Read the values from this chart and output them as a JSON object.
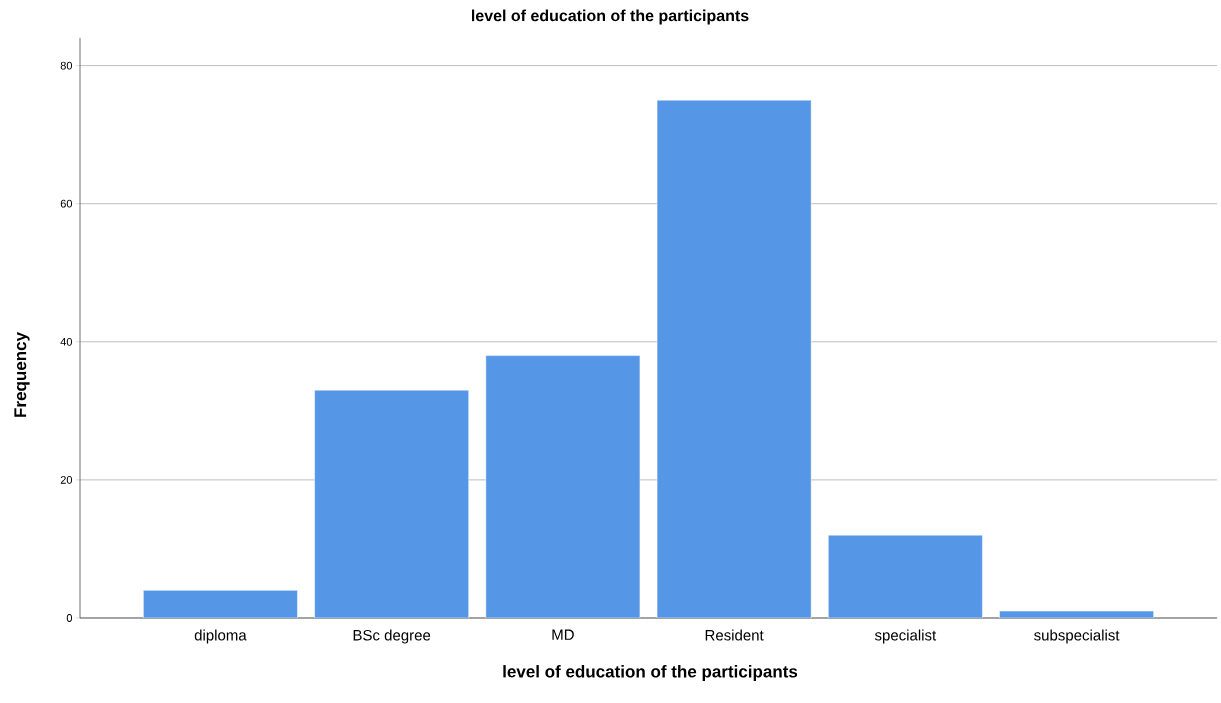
{
  "chart_data": {
    "type": "bar",
    "title": "level of education of the participants",
    "xlabel": "level of education of the participants",
    "ylabel": "Frequency",
    "categories": [
      "diploma",
      "BSc degree",
      "MD",
      "Resident",
      "specialist",
      "subspecialist"
    ],
    "values": [
      4,
      33,
      38,
      75,
      12,
      1
    ],
    "color": "#5596e6",
    "ylim": [
      0,
      84
    ],
    "yticks": [
      0,
      20,
      40,
      60,
      80
    ],
    "grid": "y"
  }
}
